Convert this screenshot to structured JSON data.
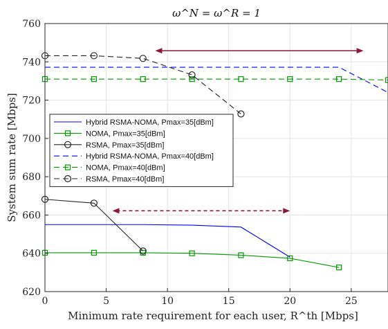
{
  "chart_data": {
    "type": "line",
    "title": "ω^N = ω^R = 1",
    "xlabel": "Minimum rate requirement for each user, R^th [Mbps]",
    "ylabel": "System sum rate [Mbps]",
    "xlim": [
      0,
      28
    ],
    "ylim": [
      620,
      760
    ],
    "xticks": [
      0,
      5,
      10,
      15,
      20,
      25
    ],
    "yticks": [
      620,
      640,
      660,
      680,
      700,
      720,
      740,
      760
    ],
    "grid": true,
    "legend_position": "middle-left",
    "series": [
      {
        "name": "Hybrid RSMA-NOMA, Pmax=35[dBm]",
        "color": "#0000ff",
        "dash": "solid",
        "marker": "none",
        "x": [
          0,
          4,
          8,
          12,
          16,
          20
        ],
        "y": [
          655,
          655,
          655,
          654.7,
          653.7,
          638
        ]
      },
      {
        "name": "NOMA, Pmax=35[dBm]",
        "color": "#009900",
        "dash": "solid",
        "marker": "square",
        "x": [
          0,
          4,
          8,
          12,
          16,
          20,
          24
        ],
        "y": [
          640.3,
          640.3,
          640.3,
          640.0,
          639.0,
          637.4,
          632.6
        ]
      },
      {
        "name": "RSMA, Pmax=35[dBm]",
        "color": "#222222",
        "dash": "solid",
        "marker": "circle",
        "x": [
          0,
          4,
          8
        ],
        "y": [
          668.2,
          666.2,
          641.2
        ]
      },
      {
        "name": "Hybrid RSMA-NOMA, Pmax=40[dBm]",
        "color": "#0000ff",
        "dash": "dashed",
        "marker": "none",
        "x": [
          0,
          4,
          8,
          12,
          16,
          20,
          24,
          28
        ],
        "y": [
          737.2,
          737.2,
          737.2,
          737.2,
          737.2,
          737.2,
          737.2,
          724
        ]
      },
      {
        "name": "NOMA, Pmax=40[dBm]",
        "color": "#009900",
        "dash": "dashed",
        "marker": "square",
        "x": [
          0,
          4,
          8,
          12,
          16,
          20,
          24,
          28
        ],
        "y": [
          731,
          731,
          731,
          731,
          731,
          731,
          731,
          730.5
        ]
      },
      {
        "name": "RSMA, Pmax=40[dBm]",
        "color": "#222222",
        "dash": "dashed",
        "marker": "circle",
        "x": [
          0,
          4,
          8,
          12,
          16
        ],
        "y": [
          743.2,
          743.2,
          741.8,
          733.2,
          712.8
        ]
      }
    ],
    "annotations": [
      {
        "type": "double-arrow",
        "style": "solid",
        "color": "#8b1a3a",
        "x": [
          9,
          26
        ],
        "y": 745.8
      },
      {
        "type": "double-arrow",
        "style": "dashed",
        "color": "#8b1a3a",
        "x": [
          5.5,
          20
        ],
        "y": 662.2
      }
    ]
  }
}
